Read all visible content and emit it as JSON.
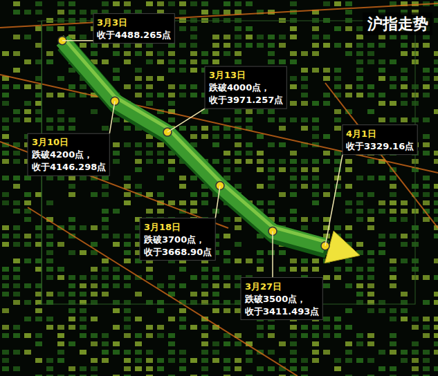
{
  "chart_data": {
    "type": "line",
    "title": "沪指走势",
    "categories": [
      "3月3日",
      "3月10日",
      "3月13日",
      "3月18日",
      "3月27日",
      "4月1日"
    ],
    "values": [
      4488.265,
      4146.298,
      3971.257,
      3668.9,
      3411.493,
      3329.16
    ],
    "value_labels": [
      "收于4488.265点",
      "收于4146.298点",
      "收于3971.257点",
      "收于3668.90点",
      "收于3411.493点",
      "收于3329.16点"
    ],
    "annotations": [
      null,
      "跌破4200点，",
      "跌破4000点，",
      "跌破3700点，",
      "跌破3500点，",
      null
    ],
    "color": "#3c9a2e",
    "ylim": [
      3000,
      4600
    ],
    "yticks": [],
    "grid": false,
    "tick_labels": false,
    "data_labels": true
  }
}
